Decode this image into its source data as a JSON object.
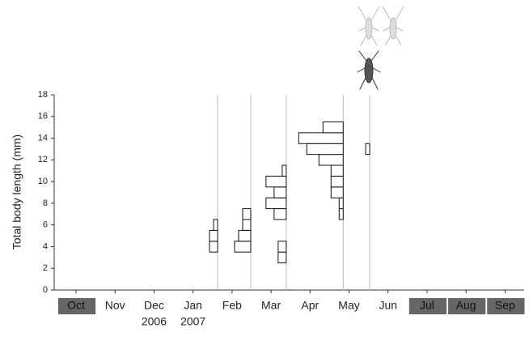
{
  "chart_data": {
    "type": "length-frequency",
    "y_label": "Total body length (mm)",
    "ylim": [
      0,
      18
    ],
    "yticks": [
      0,
      2,
      4,
      6,
      8,
      10,
      12,
      14,
      16,
      18
    ],
    "xlim": [
      -0.56,
      11.49
    ],
    "categories": [
      "Oct",
      "Nov",
      "Dec",
      "Jan",
      "Feb",
      "Mar",
      "Apr",
      "May",
      "Jun",
      "Jul",
      "Aug",
      "Sep"
    ],
    "shaded_months": [
      0,
      9,
      10,
      11
    ],
    "years": [
      {
        "at": 2,
        "label": "2006"
      },
      {
        "at": 3,
        "label": "2007"
      }
    ],
    "samples": [
      {
        "x": 3.63,
        "lengths": [
          4,
          5,
          6
        ],
        "counts": [
          2,
          2,
          1
        ]
      },
      {
        "x": 4.48,
        "lengths": [
          4,
          5,
          6,
          7
        ],
        "counts": [
          4,
          3,
          2,
          2
        ]
      },
      {
        "x": 5.39,
        "lengths": [
          3,
          4,
          7,
          8,
          9,
          10,
          11
        ],
        "counts": [
          2,
          2,
          3,
          5,
          3,
          5,
          1
        ]
      },
      {
        "x": 6.85,
        "lengths": [
          7,
          8,
          9,
          10,
          11,
          12,
          13,
          14,
          15
        ],
        "counts": [
          1,
          1,
          3,
          3,
          3,
          6,
          9,
          11,
          5
        ]
      },
      {
        "x": 7.53,
        "lengths": [
          13
        ],
        "counts": [
          1
        ]
      }
    ]
  }
}
